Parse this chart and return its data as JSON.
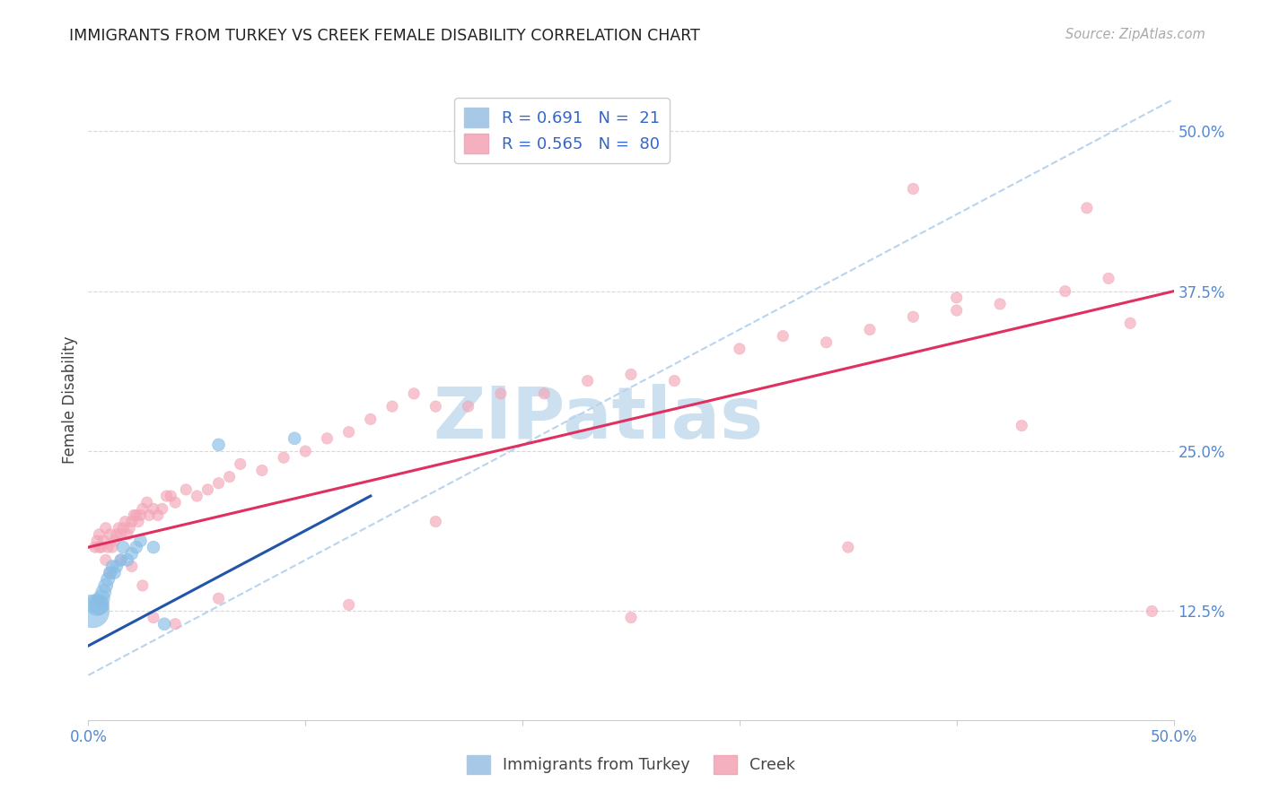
{
  "title": "IMMIGRANTS FROM TURKEY VS CREEK FEMALE DISABILITY CORRELATION CHART",
  "source": "Source: ZipAtlas.com",
  "ylabel": "Female Disability",
  "ylabel_right_positions": [
    0.5,
    0.375,
    0.25,
    0.125
  ],
  "ylabel_right_labels": [
    "50.0%",
    "37.5%",
    "25.0%",
    "12.5%"
  ],
  "xlim": [
    0.0,
    0.5
  ],
  "ylim": [
    0.04,
    0.54
  ],
  "bg_color": "#ffffff",
  "grid_color": "#d8d8d8",
  "turkey_color": "#88bde6",
  "creek_color": "#f4a6b8",
  "turkey_line_color": "#2255aa",
  "creek_line_color": "#e03060",
  "trend_line_color": "#b8d4ee",
  "watermark": "ZIPatlas",
  "watermark_color": "#cce0f0",
  "legend_R1": "R = 0.691",
  "legend_N1": "N =  21",
  "legend_R2": "R = 0.565",
  "legend_N2": "N =  80",
  "turkey_scatter_x": [
    0.002,
    0.004,
    0.005,
    0.006,
    0.007,
    0.008,
    0.009,
    0.01,
    0.011,
    0.012,
    0.013,
    0.015,
    0.016,
    0.018,
    0.02,
    0.022,
    0.024,
    0.03,
    0.035,
    0.06,
    0.095
  ],
  "turkey_scatter_y": [
    0.125,
    0.13,
    0.13,
    0.135,
    0.14,
    0.145,
    0.15,
    0.155,
    0.16,
    0.155,
    0.16,
    0.165,
    0.175,
    0.165,
    0.17,
    0.175,
    0.18,
    0.175,
    0.115,
    0.255,
    0.26
  ],
  "turkey_scatter_size": [
    700,
    300,
    250,
    180,
    150,
    130,
    120,
    110,
    100,
    100,
    100,
    100,
    100,
    100,
    100,
    100,
    100,
    100,
    100,
    100,
    100
  ],
  "creek_scatter_x": [
    0.003,
    0.004,
    0.005,
    0.006,
    0.007,
    0.008,
    0.009,
    0.01,
    0.011,
    0.012,
    0.013,
    0.014,
    0.015,
    0.016,
    0.017,
    0.018,
    0.019,
    0.02,
    0.021,
    0.022,
    0.023,
    0.024,
    0.025,
    0.027,
    0.028,
    0.03,
    0.032,
    0.034,
    0.036,
    0.038,
    0.04,
    0.045,
    0.05,
    0.055,
    0.06,
    0.065,
    0.07,
    0.08,
    0.09,
    0.1,
    0.11,
    0.12,
    0.13,
    0.14,
    0.15,
    0.16,
    0.175,
    0.19,
    0.21,
    0.23,
    0.25,
    0.27,
    0.3,
    0.32,
    0.34,
    0.36,
    0.38,
    0.4,
    0.42,
    0.45,
    0.005,
    0.008,
    0.01,
    0.015,
    0.02,
    0.025,
    0.03,
    0.04,
    0.06,
    0.12,
    0.16,
    0.25,
    0.35,
    0.38,
    0.4,
    0.43,
    0.46,
    0.47,
    0.48,
    0.49
  ],
  "creek_scatter_y": [
    0.175,
    0.18,
    0.185,
    0.175,
    0.18,
    0.19,
    0.175,
    0.185,
    0.175,
    0.18,
    0.185,
    0.19,
    0.185,
    0.19,
    0.195,
    0.185,
    0.19,
    0.195,
    0.2,
    0.2,
    0.195,
    0.2,
    0.205,
    0.21,
    0.2,
    0.205,
    0.2,
    0.205,
    0.215,
    0.215,
    0.21,
    0.22,
    0.215,
    0.22,
    0.225,
    0.23,
    0.24,
    0.235,
    0.245,
    0.25,
    0.26,
    0.265,
    0.275,
    0.285,
    0.295,
    0.285,
    0.285,
    0.295,
    0.295,
    0.305,
    0.31,
    0.305,
    0.33,
    0.34,
    0.335,
    0.345,
    0.355,
    0.37,
    0.365,
    0.375,
    0.175,
    0.165,
    0.155,
    0.165,
    0.16,
    0.145,
    0.12,
    0.115,
    0.135,
    0.13,
    0.195,
    0.12,
    0.175,
    0.455,
    0.36,
    0.27,
    0.44,
    0.385,
    0.35,
    0.125
  ],
  "creek_scatter_size": [
    80,
    80,
    80,
    80,
    80,
    80,
    80,
    80,
    80,
    80,
    80,
    80,
    80,
    80,
    80,
    80,
    80,
    80,
    80,
    80,
    80,
    80,
    80,
    80,
    80,
    80,
    80,
    80,
    80,
    80,
    80,
    80,
    80,
    80,
    80,
    80,
    80,
    80,
    80,
    80,
    80,
    80,
    80,
    80,
    80,
    80,
    80,
    80,
    80,
    80,
    80,
    80,
    80,
    80,
    80,
    80,
    80,
    80,
    80,
    80,
    80,
    80,
    80,
    80,
    80,
    80,
    80,
    80,
    80,
    80,
    80,
    80,
    80,
    80,
    80,
    80,
    80,
    80,
    80,
    80
  ],
  "turkey_line_x": [
    0.0,
    0.13
  ],
  "turkey_line_y": [
    0.098,
    0.215
  ],
  "creek_line_x": [
    0.0,
    0.5
  ],
  "creek_line_y": [
    0.175,
    0.375
  ],
  "trend_line_x": [
    0.0,
    0.5
  ],
  "trend_line_y": [
    0.075,
    0.525
  ]
}
